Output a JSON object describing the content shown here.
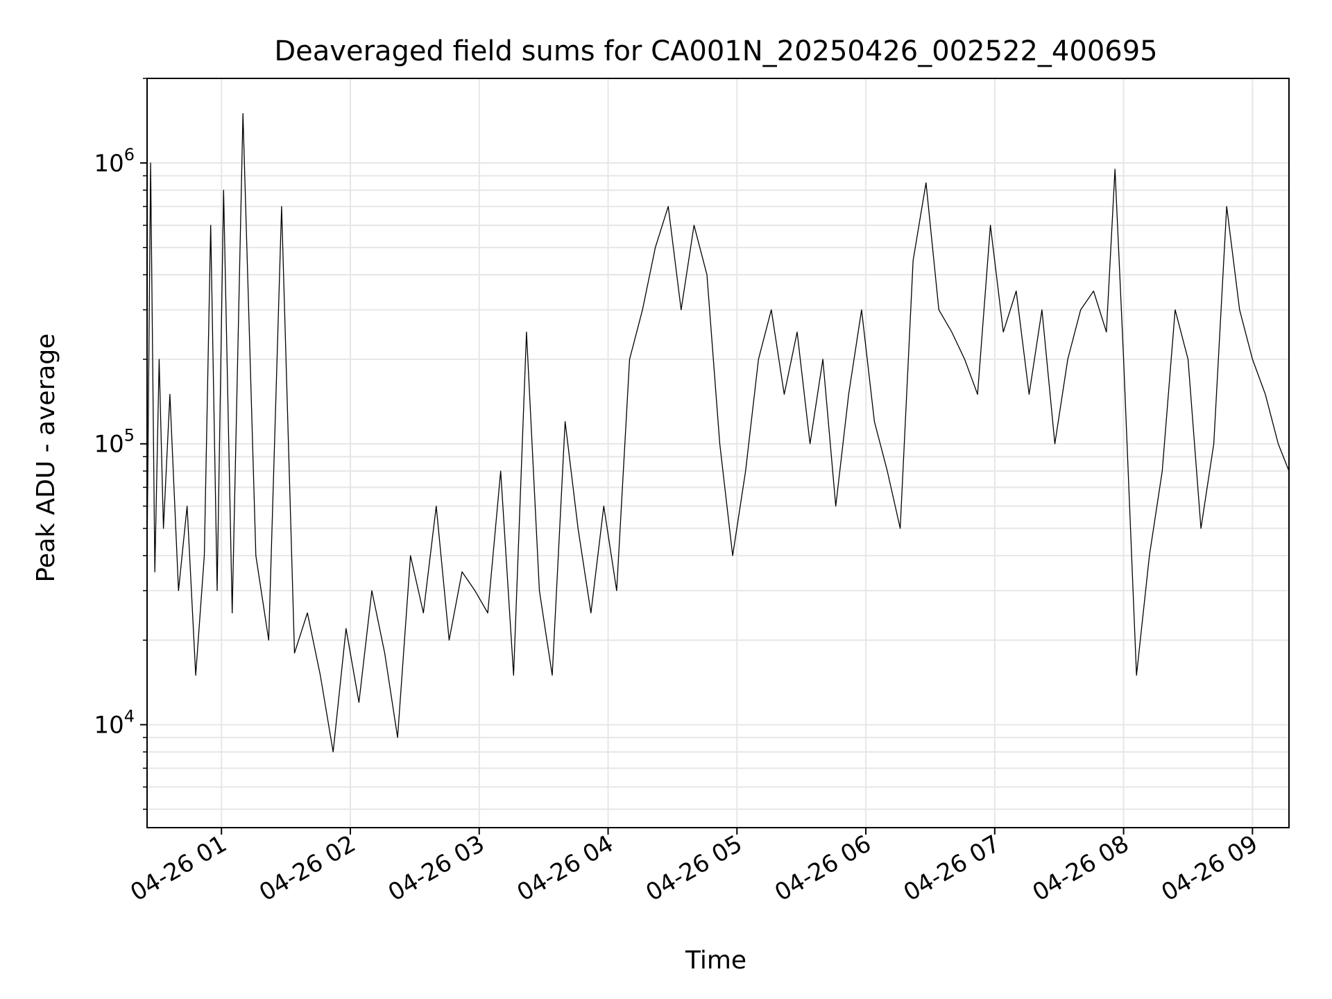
{
  "chart_data": {
    "type": "line",
    "title": "Deaveraged field sums for CA001N_20250426_002522_400695",
    "xlabel": "Time",
    "ylabel": "Peak ADU - average",
    "yscale": "log",
    "ylim": [
      4300,
      2000000
    ],
    "xlim": [
      "2025-04-26 00:25:22",
      "2025-04-26 09:17:00"
    ],
    "grid": true,
    "line_color": "#000000",
    "x_ticks": [
      "04-26 01",
      "04-26 02",
      "04-26 03",
      "04-26 04",
      "04-26 05",
      "04-26 06",
      "04-26 07",
      "04-26 08",
      "04-26 09"
    ],
    "y_ticks": [
      {
        "value": 10000,
        "base": "10",
        "exp": "4"
      },
      {
        "value": 100000,
        "base": "10",
        "exp": "5"
      },
      {
        "value": 1000000,
        "base": "10",
        "exp": "6"
      }
    ],
    "series": [
      {
        "x": [
          "2025-04-26 00:25:22",
          "2025-04-26 00:27:00",
          "2025-04-26 00:29:00",
          "2025-04-26 00:31:00",
          "2025-04-26 00:33:00",
          "2025-04-26 00:36:00",
          "2025-04-26 00:40:00",
          "2025-04-26 00:44:00",
          "2025-04-26 00:48:00",
          "2025-04-26 00:52:00",
          "2025-04-26 00:55:00",
          "2025-04-26 00:58:00",
          "2025-04-26 01:01:00",
          "2025-04-26 01:05:00",
          "2025-04-26 01:10:00",
          "2025-04-26 01:16:00",
          "2025-04-26 01:22:00",
          "2025-04-26 01:28:00",
          "2025-04-26 01:34:00",
          "2025-04-26 01:40:00",
          "2025-04-26 01:46:00",
          "2025-04-26 01:52:00",
          "2025-04-26 01:58:00",
          "2025-04-26 02:04:00",
          "2025-04-26 02:10:00",
          "2025-04-26 02:16:00",
          "2025-04-26 02:22:00",
          "2025-04-26 02:28:00",
          "2025-04-26 02:34:00",
          "2025-04-26 02:40:00",
          "2025-04-26 02:46:00",
          "2025-04-26 02:52:00",
          "2025-04-26 02:58:00",
          "2025-04-26 03:04:00",
          "2025-04-26 03:10:00",
          "2025-04-26 03:16:00",
          "2025-04-26 03:22:00",
          "2025-04-26 03:28:00",
          "2025-04-26 03:34:00",
          "2025-04-26 03:40:00",
          "2025-04-26 03:46:00",
          "2025-04-26 03:52:00",
          "2025-04-26 03:58:00",
          "2025-04-26 04:04:00",
          "2025-04-26 04:10:00",
          "2025-04-26 04:16:00",
          "2025-04-26 04:22:00",
          "2025-04-26 04:28:00",
          "2025-04-26 04:34:00",
          "2025-04-26 04:40:00",
          "2025-04-26 04:46:00",
          "2025-04-26 04:52:00",
          "2025-04-26 04:58:00",
          "2025-04-26 05:04:00",
          "2025-04-26 05:10:00",
          "2025-04-26 05:16:00",
          "2025-04-26 05:22:00",
          "2025-04-26 05:28:00",
          "2025-04-26 05:34:00",
          "2025-04-26 05:40:00",
          "2025-04-26 05:46:00",
          "2025-04-26 05:52:00",
          "2025-04-26 05:58:00",
          "2025-04-26 06:04:00",
          "2025-04-26 06:10:00",
          "2025-04-26 06:16:00",
          "2025-04-26 06:22:00",
          "2025-04-26 06:28:00",
          "2025-04-26 06:34:00",
          "2025-04-26 06:40:00",
          "2025-04-26 06:46:00",
          "2025-04-26 06:52:00",
          "2025-04-26 06:58:00",
          "2025-04-26 07:04:00",
          "2025-04-26 07:10:00",
          "2025-04-26 07:16:00",
          "2025-04-26 07:22:00",
          "2025-04-26 07:28:00",
          "2025-04-26 07:34:00",
          "2025-04-26 07:40:00",
          "2025-04-26 07:46:00",
          "2025-04-26 07:52:00",
          "2025-04-26 07:56:00",
          "2025-04-26 08:00:00",
          "2025-04-26 08:06:00",
          "2025-04-26 08:12:00",
          "2025-04-26 08:18:00",
          "2025-04-26 08:24:00",
          "2025-04-26 08:30:00",
          "2025-04-26 08:36:00",
          "2025-04-26 08:42:00",
          "2025-04-26 08:48:00",
          "2025-04-26 08:54:00",
          "2025-04-26 09:00:00",
          "2025-04-26 09:06:00",
          "2025-04-26 09:12:00",
          "2025-04-26 09:17:00"
        ],
        "y": [
          40000,
          1000000,
          35000,
          200000,
          50000,
          150000,
          30000,
          60000,
          15000,
          40000,
          600000,
          30000,
          800000,
          25000,
          1500000,
          40000,
          20000,
          700000,
          18000,
          25000,
          15000,
          8000,
          22000,
          12000,
          30000,
          18000,
          9000,
          40000,
          25000,
          60000,
          20000,
          35000,
          30000,
          25000,
          80000,
          15000,
          250000,
          30000,
          15000,
          120000,
          50000,
          25000,
          60000,
          30000,
          200000,
          300000,
          500000,
          700000,
          300000,
          600000,
          400000,
          100000,
          40000,
          80000,
          200000,
          300000,
          150000,
          250000,
          100000,
          200000,
          60000,
          150000,
          300000,
          120000,
          80000,
          50000,
          450000,
          850000,
          300000,
          250000,
          200000,
          150000,
          600000,
          250000,
          350000,
          150000,
          300000,
          100000,
          200000,
          300000,
          350000,
          250000,
          950000,
          200000,
          15000,
          40000,
          80000,
          300000,
          200000,
          50000,
          100000,
          700000,
          300000,
          200000,
          150000,
          100000,
          80000
        ]
      }
    ]
  }
}
